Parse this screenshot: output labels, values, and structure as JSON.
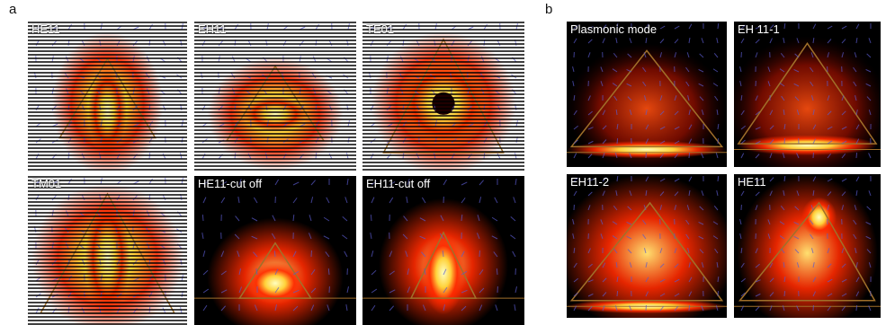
{
  "figure_a": {
    "letter": "a",
    "panels": [
      {
        "label": "HE11",
        "mode": "he11",
        "striped": true
      },
      {
        "label": "EH11",
        "mode": "eh11",
        "striped": true
      },
      {
        "label": "TE01",
        "mode": "te01",
        "striped": true
      },
      {
        "label": "TM01",
        "mode": "tm01",
        "striped": true
      },
      {
        "label": "HE11-cut off",
        "mode": "he11cut",
        "striped": false
      },
      {
        "label": "EH11-cut off",
        "mode": "eh11cut",
        "striped": false
      }
    ]
  },
  "figure_b": {
    "letter": "b",
    "panels": [
      {
        "label": "Plasmonic mode",
        "mode": "plasmonic"
      },
      {
        "label": "EH 11-1",
        "mode": "eh111"
      },
      {
        "label": "EH11-2",
        "mode": "eh112"
      },
      {
        "label": "HE11",
        "mode": "he11b"
      }
    ]
  },
  "colors": {
    "field_hot": "#ffffc0",
    "field_mid": "#ff2a00",
    "background": "#000000",
    "triangle_outline": "#a0702a",
    "vector_arrows": "#5a5acc",
    "stripe": "#000000"
  }
}
